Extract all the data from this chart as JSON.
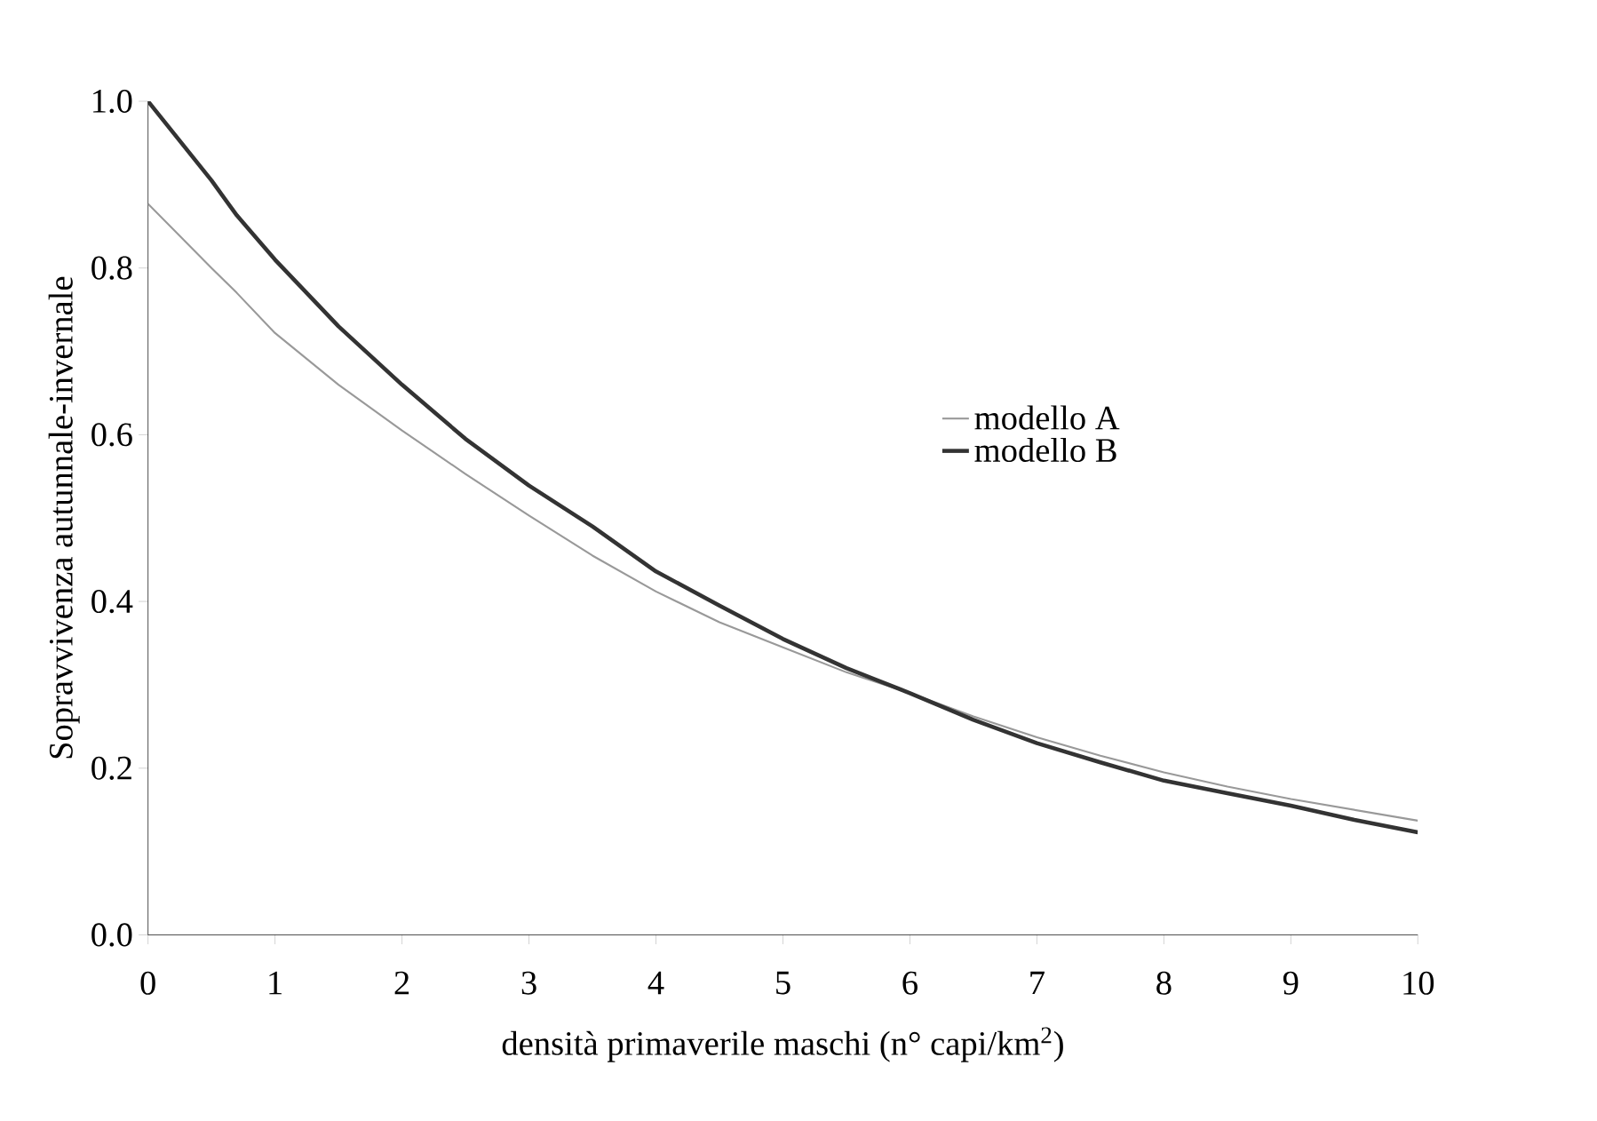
{
  "chart_data": {
    "type": "line",
    "xlabel": "densità primaverile maschi (n° capi/km$^{2}$)",
    "ylabel": "Sopravvivenza autunnale-invernale",
    "x": [
      0,
      0.5,
      0.7,
      1,
      1.5,
      2,
      2.5,
      3,
      3.5,
      4,
      4.5,
      5,
      5.5,
      6,
      6.5,
      7,
      7.5,
      8,
      8.5,
      9,
      9.5,
      10
    ],
    "series": [
      {
        "name": "modello A",
        "color": "#999999",
        "line_style": "solid",
        "values": [
          0.877,
          0.8,
          0.77,
          0.722,
          0.66,
          0.605,
          0.553,
          0.503,
          0.455,
          0.412,
          0.375,
          0.345,
          0.315,
          0.29,
          0.262,
          0.237,
          0.215,
          0.195,
          0.178,
          0.163,
          0.15,
          0.137
        ]
      },
      {
        "name": "modello B",
        "color": "#333333",
        "line_style": "solid",
        "values": [
          1.0,
          0.905,
          0.863,
          0.81,
          0.73,
          0.66,
          0.595,
          0.539,
          0.49,
          0.436,
          0.395,
          0.355,
          0.32,
          0.29,
          0.258,
          0.23,
          0.207,
          0.185,
          0.17,
          0.155,
          0.138,
          0.123
        ]
      }
    ],
    "xlim": [
      0,
      10
    ],
    "ylim": [
      0,
      1.0
    ],
    "xticks": [
      0,
      1,
      2,
      3,
      4,
      5,
      6,
      7,
      8,
      9,
      10
    ],
    "yticks": [
      {
        "value": 0,
        "label": "0.0"
      },
      {
        "value": 0.2,
        "label": "0.2"
      },
      {
        "value": 0.4,
        "label": "0.4"
      },
      {
        "value": 0.6,
        "label": "0.6"
      },
      {
        "value": 0.8,
        "label": "0.8"
      },
      {
        "value": 1.0,
        "label": "1.0"
      }
    ],
    "grid": false,
    "legend": "right",
    "marker": "none"
  }
}
